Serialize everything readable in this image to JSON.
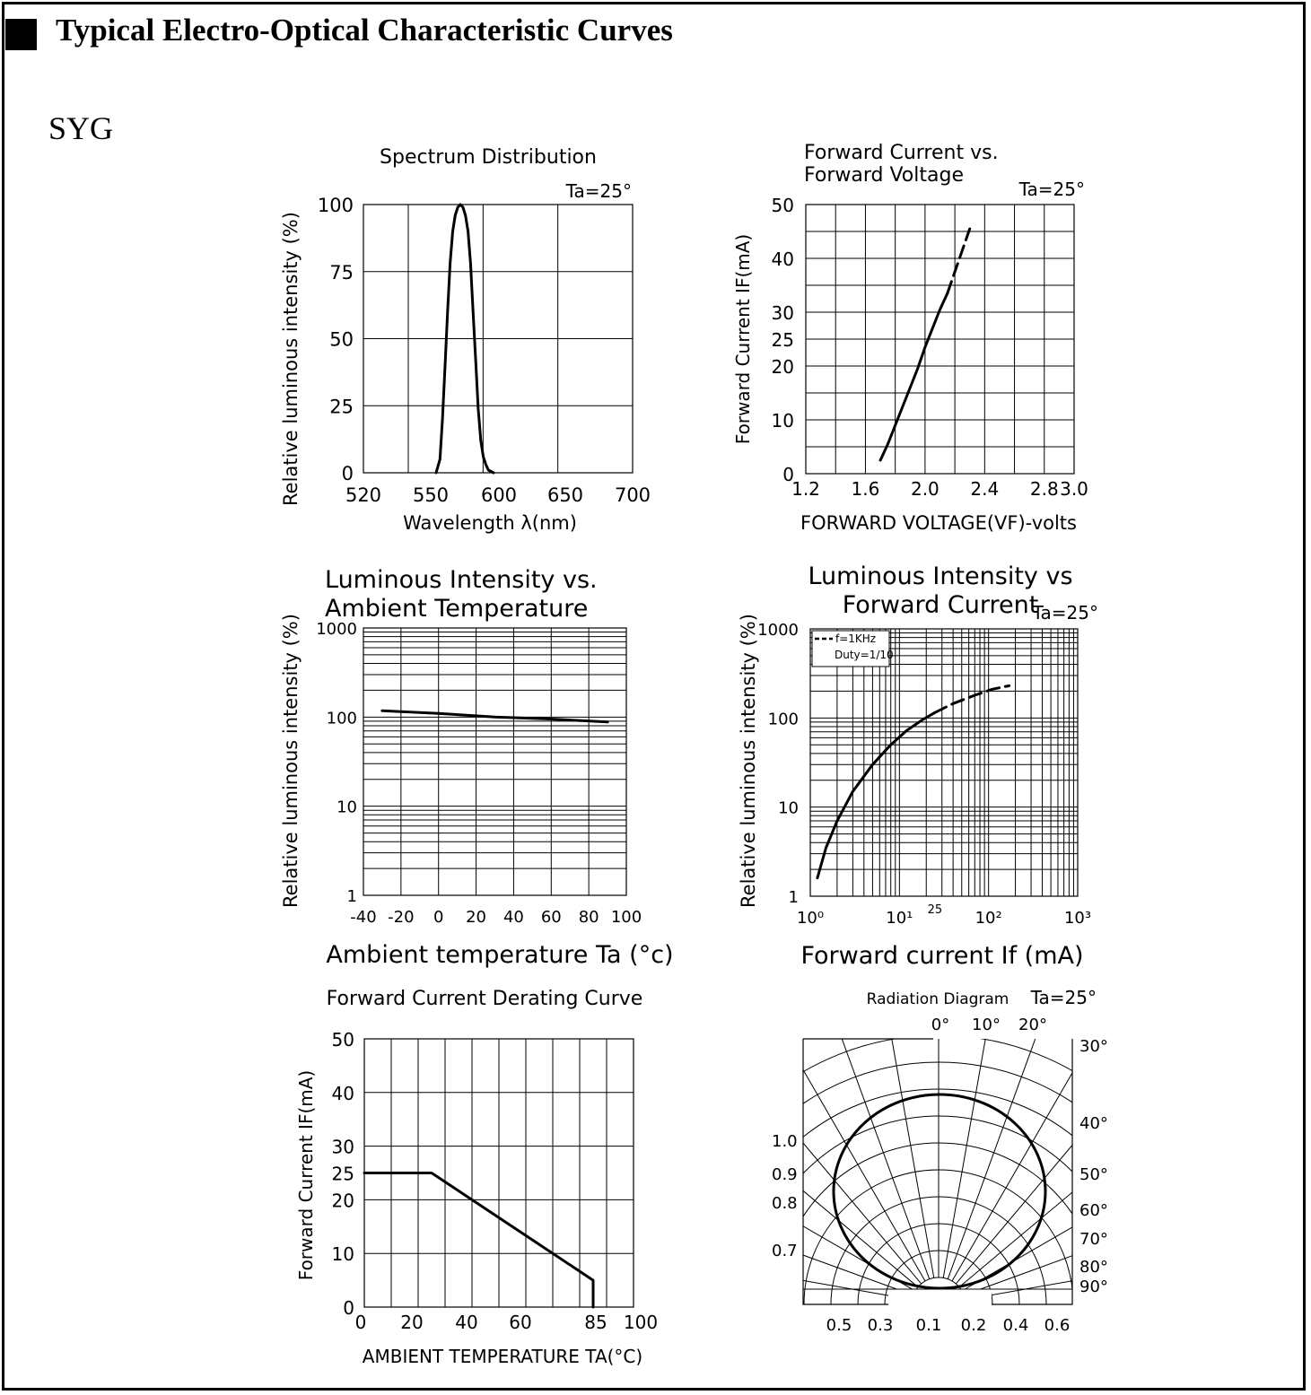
{
  "header": {
    "title": "Typical Electro-Optical Characteristic Curves"
  },
  "variant": "SYG",
  "chart_data": [
    {
      "id": "spectrum",
      "type": "line",
      "title": "Spectrum Distribution",
      "condition": "Ta=25°",
      "xlabel": "Wavelength λ(nm)",
      "ylabel": "Relative luminous intensity (%)",
      "xlim": [
        520,
        700
      ],
      "ylim": [
        0,
        100
      ],
      "xticks": [
        520,
        550,
        600,
        650,
        700
      ],
      "yticks": [
        0,
        25,
        50,
        75,
        100
      ],
      "grid": true,
      "series": [
        {
          "x": [
            550,
            553,
            555,
            557,
            559,
            561,
            563,
            565,
            567,
            569,
            571,
            573,
            575,
            577,
            579,
            581,
            583,
            585,
            587,
            589,
            591,
            593,
            595
          ],
          "y": [
            0,
            5,
            20,
            40,
            60,
            78,
            90,
            96,
            99,
            100,
            99,
            96,
            90,
            78,
            60,
            42,
            24,
            12,
            6,
            3,
            1,
            0.5,
            0
          ]
        }
      ]
    },
    {
      "id": "iv",
      "type": "line",
      "title": "Forward Current vs. Forward Voltage",
      "title_lines": [
        "Forward Current vs.",
        "Forward Voltage"
      ],
      "condition": "Ta=25°",
      "xlabel": "FORWARD VOLTAGE(VF)-volts",
      "ylabel": "Forward Current IF(mA)",
      "xlim": [
        1.2,
        3.0
      ],
      "ylim": [
        0,
        50
      ],
      "xticks": [
        1.2,
        1.6,
        2.0,
        2.4,
        2.8,
        3.0
      ],
      "yticks": [
        0,
        10,
        20,
        25,
        30,
        40,
        50
      ],
      "grid": true,
      "series": [
        {
          "style": "solid",
          "x": [
            1.7,
            1.75,
            1.8,
            1.85,
            1.9,
            1.95,
            2.0,
            2.05,
            2.1,
            2.15
          ],
          "y": [
            2.5,
            5.5,
            9,
            12.5,
            16,
            19.5,
            23.5,
            27,
            30.5,
            33.5
          ]
        },
        {
          "style": "dashed",
          "x": [
            2.15,
            2.2,
            2.25,
            2.3
          ],
          "y": [
            33.5,
            37.5,
            41.5,
            45.5
          ]
        }
      ]
    },
    {
      "id": "temp",
      "type": "line",
      "title": "Luminous Intensity vs. Ambient Temperature",
      "title_lines": [
        "Luminous Intensity vs.",
        "Ambient Temperature"
      ],
      "xlabel": "Ambient temperature Ta (°c)",
      "ylabel": "Relative luminous intensity (%)",
      "xlim": [
        -40,
        100
      ],
      "ylim": [
        1,
        1000
      ],
      "yscale": "log",
      "xticks": [
        -40,
        -20,
        0,
        20,
        40,
        60,
        80,
        100
      ],
      "yticks": [
        1,
        10,
        100,
        1000
      ],
      "grid": true,
      "series": [
        {
          "x": [
            -30,
            0,
            30,
            60,
            90
          ],
          "y": [
            118,
            110,
            100,
            95,
            88
          ]
        }
      ]
    },
    {
      "id": "li",
      "type": "line",
      "title": "Luminous Intensity vs Forward Current",
      "title_lines": [
        "Luminous Intensity vs",
        "Forward Current"
      ],
      "condition": "Ta=25°",
      "xlabel": "Forward current If (mA)",
      "ylabel": "Relative luminous intensity (%)",
      "xlim": [
        1,
        1000
      ],
      "ylim": [
        1,
        1000
      ],
      "xscale": "log",
      "yscale": "log",
      "xticks": [
        "10⁰",
        "10¹",
        "25",
        "10²",
        "10³"
      ],
      "yticks": [
        1,
        10,
        100,
        1000
      ],
      "legend": {
        "entries": [
          "f=1KHz",
          "Duty=1/10"
        ],
        "placement": "top-left"
      },
      "grid": true,
      "series": [
        {
          "style": "solid",
          "x": [
            1.2,
            1.5,
            2,
            3,
            5,
            8,
            12,
            18,
            25
          ],
          "y": [
            1.6,
            3.5,
            7,
            15,
            30,
            50,
            72,
            95,
            115
          ]
        },
        {
          "style": "dashed",
          "x": [
            25,
            40,
            70,
            110,
            170
          ],
          "y": [
            115,
            145,
            180,
            210,
            230
          ]
        }
      ]
    },
    {
      "id": "derating",
      "type": "line",
      "title": "Forward Current Derating Curve",
      "xlabel": "AMBIENT TEMPERATURE TA(°C)",
      "ylabel": "Forward Current IF(mA)",
      "xlim": [
        0,
        100
      ],
      "ylim": [
        0,
        50
      ],
      "xticks": [
        0,
        20,
        40,
        60,
        85,
        100
      ],
      "yticks": [
        0,
        10,
        20,
        25,
        30,
        40,
        50
      ],
      "grid": true,
      "series": [
        {
          "x": [
            0,
            25,
            85,
            85
          ],
          "y": [
            25,
            25,
            5,
            0
          ]
        }
      ]
    },
    {
      "id": "radiation",
      "type": "polar",
      "title": "Radiation Diagram",
      "condition": "Ta=25°",
      "angle_labels_top": [
        "0°",
        "10°",
        "20°"
      ],
      "angle_labels_right": [
        "30°",
        "40°",
        "50°",
        "60°",
        "70°",
        "80°",
        "90°"
      ],
      "radial_labels_left": [
        "1.0",
        "0.9",
        "0.8",
        "0.7"
      ],
      "bottom_labels": [
        "0.5",
        "0.3",
        "0.1",
        "0.2",
        "0.4",
        "0.6"
      ],
      "series": [
        {
          "description_free": true,
          "angle_deg": [
            -60,
            -45,
            -30,
            -15,
            0,
            15,
            30,
            45,
            60
          ],
          "relative_intensity": [
            0.5,
            0.71,
            0.87,
            0.97,
            1.0,
            0.97,
            0.87,
            0.71,
            0.5
          ]
        }
      ]
    }
  ]
}
